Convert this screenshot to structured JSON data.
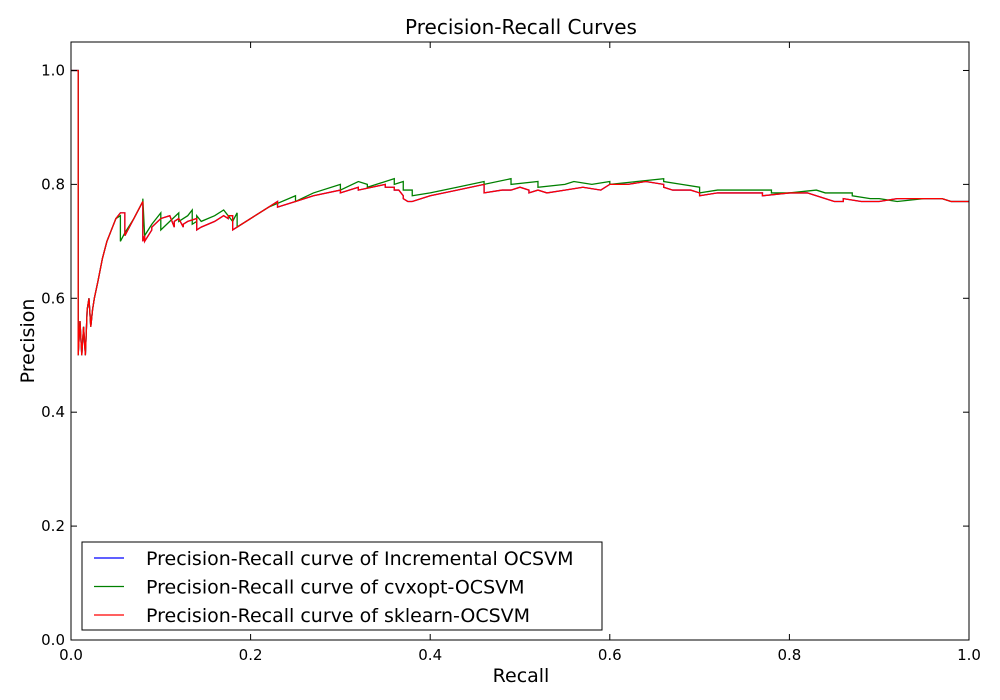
{
  "chart_data": {
    "type": "line",
    "title": "Precision-Recall Curves",
    "xlabel": "Recall",
    "ylabel": "Precision",
    "xlim": [
      0.0,
      1.0
    ],
    "ylim": [
      0.0,
      1.05
    ],
    "x_ticks": [
      "0.0",
      "0.2",
      "0.4",
      "0.6",
      "0.8",
      "1.0"
    ],
    "y_ticks": [
      "0.0",
      "0.2",
      "0.4",
      "0.6",
      "0.8",
      "1.0"
    ],
    "grid": false,
    "legend_position": "lower-left",
    "series": [
      {
        "name": "Precision-Recall curve of Incremental OCSVM",
        "color": "#0000ff",
        "x": [
          0.0,
          0.008,
          0.008,
          0.01,
          0.012,
          0.014,
          0.016,
          0.018,
          0.02,
          0.022,
          0.024,
          0.026,
          0.03,
          0.035,
          0.04,
          0.045,
          0.05,
          0.055,
          0.06,
          0.06,
          0.07,
          0.08,
          0.08,
          0.082,
          0.082,
          0.09,
          0.09,
          0.1,
          0.11,
          0.115,
          0.115,
          0.12,
          0.125,
          0.125,
          0.13,
          0.14,
          0.14,
          0.145,
          0.16,
          0.17,
          0.175,
          0.175,
          0.18,
          0.18,
          0.2,
          0.22,
          0.23,
          0.23,
          0.25,
          0.27,
          0.27,
          0.3,
          0.3,
          0.32,
          0.32,
          0.35,
          0.35,
          0.36,
          0.36,
          0.365,
          0.37,
          0.37,
          0.375,
          0.38,
          0.4,
          0.43,
          0.46,
          0.46,
          0.48,
          0.49,
          0.5,
          0.51,
          0.51,
          0.52,
          0.53,
          0.55,
          0.57,
          0.59,
          0.6,
          0.62,
          0.64,
          0.66,
          0.66,
          0.67,
          0.69,
          0.7,
          0.7,
          0.72,
          0.75,
          0.77,
          0.77,
          0.8,
          0.82,
          0.83,
          0.84,
          0.85,
          0.86,
          0.86,
          0.88,
          0.9,
          0.92,
          0.95,
          0.97,
          0.98,
          1.0
        ],
        "y": [
          1.0,
          1.0,
          0.5,
          0.56,
          0.5,
          0.55,
          0.5,
          0.58,
          0.6,
          0.55,
          0.58,
          0.6,
          0.63,
          0.67,
          0.7,
          0.72,
          0.74,
          0.75,
          0.75,
          0.71,
          0.74,
          0.77,
          0.7,
          0.71,
          0.7,
          0.72,
          0.725,
          0.74,
          0.745,
          0.725,
          0.735,
          0.74,
          0.725,
          0.73,
          0.735,
          0.74,
          0.72,
          0.725,
          0.735,
          0.745,
          0.74,
          0.745,
          0.745,
          0.72,
          0.74,
          0.76,
          0.77,
          0.76,
          0.77,
          0.78,
          0.78,
          0.79,
          0.785,
          0.795,
          0.79,
          0.8,
          0.795,
          0.795,
          0.79,
          0.79,
          0.78,
          0.775,
          0.77,
          0.77,
          0.78,
          0.79,
          0.8,
          0.785,
          0.79,
          0.79,
          0.795,
          0.79,
          0.785,
          0.79,
          0.785,
          0.79,
          0.795,
          0.79,
          0.8,
          0.8,
          0.805,
          0.8,
          0.795,
          0.79,
          0.79,
          0.785,
          0.78,
          0.785,
          0.785,
          0.785,
          0.78,
          0.785,
          0.785,
          0.78,
          0.775,
          0.77,
          0.77,
          0.775,
          0.77,
          0.77,
          0.775,
          0.775,
          0.775,
          0.77,
          0.77
        ]
      },
      {
        "name": "Precision-Recall curve of cvxopt-OCSVM",
        "color": "#008000",
        "x": [
          0.0,
          0.008,
          0.008,
          0.01,
          0.012,
          0.014,
          0.016,
          0.018,
          0.02,
          0.022,
          0.024,
          0.026,
          0.03,
          0.035,
          0.04,
          0.045,
          0.05,
          0.055,
          0.055,
          0.06,
          0.07,
          0.08,
          0.08,
          0.082,
          0.09,
          0.1,
          0.1,
          0.11,
          0.12,
          0.12,
          0.13,
          0.135,
          0.135,
          0.14,
          0.14,
          0.145,
          0.16,
          0.17,
          0.175,
          0.18,
          0.185,
          0.185,
          0.2,
          0.22,
          0.25,
          0.25,
          0.27,
          0.3,
          0.3,
          0.32,
          0.33,
          0.33,
          0.34,
          0.36,
          0.36,
          0.37,
          0.37,
          0.38,
          0.38,
          0.4,
          0.43,
          0.46,
          0.46,
          0.49,
          0.49,
          0.52,
          0.52,
          0.55,
          0.56,
          0.58,
          0.6,
          0.6,
          0.63,
          0.66,
          0.66,
          0.68,
          0.7,
          0.7,
          0.72,
          0.75,
          0.78,
          0.78,
          0.8,
          0.83,
          0.84,
          0.85,
          0.87,
          0.87,
          0.89,
          0.9,
          0.92,
          0.95,
          0.97,
          0.98,
          1.0
        ],
        "y": [
          1.0,
          1.0,
          0.5,
          0.56,
          0.5,
          0.55,
          0.5,
          0.58,
          0.6,
          0.55,
          0.58,
          0.6,
          0.63,
          0.67,
          0.7,
          0.72,
          0.74,
          0.745,
          0.7,
          0.715,
          0.74,
          0.77,
          0.775,
          0.71,
          0.73,
          0.75,
          0.72,
          0.735,
          0.75,
          0.735,
          0.745,
          0.755,
          0.73,
          0.735,
          0.745,
          0.735,
          0.745,
          0.755,
          0.745,
          0.735,
          0.75,
          0.725,
          0.74,
          0.76,
          0.78,
          0.77,
          0.785,
          0.8,
          0.79,
          0.805,
          0.8,
          0.795,
          0.8,
          0.81,
          0.8,
          0.805,
          0.79,
          0.79,
          0.78,
          0.785,
          0.795,
          0.805,
          0.8,
          0.81,
          0.8,
          0.805,
          0.795,
          0.8,
          0.805,
          0.8,
          0.805,
          0.8,
          0.805,
          0.81,
          0.805,
          0.8,
          0.795,
          0.785,
          0.79,
          0.79,
          0.79,
          0.785,
          0.785,
          0.79,
          0.785,
          0.785,
          0.785,
          0.78,
          0.775,
          0.775,
          0.77,
          0.775,
          0.775,
          0.77,
          0.77
        ]
      },
      {
        "name": "Precision-Recall curve of sklearn-OCSVM",
        "color": "#ff0000",
        "x": [
          0.0,
          0.008,
          0.008,
          0.01,
          0.012,
          0.014,
          0.016,
          0.018,
          0.02,
          0.022,
          0.024,
          0.026,
          0.03,
          0.035,
          0.04,
          0.045,
          0.05,
          0.055,
          0.06,
          0.06,
          0.07,
          0.08,
          0.08,
          0.082,
          0.082,
          0.09,
          0.09,
          0.1,
          0.11,
          0.115,
          0.115,
          0.12,
          0.125,
          0.125,
          0.13,
          0.14,
          0.14,
          0.145,
          0.16,
          0.17,
          0.175,
          0.175,
          0.18,
          0.18,
          0.2,
          0.22,
          0.23,
          0.23,
          0.25,
          0.27,
          0.27,
          0.3,
          0.3,
          0.32,
          0.32,
          0.35,
          0.35,
          0.36,
          0.36,
          0.365,
          0.37,
          0.37,
          0.375,
          0.38,
          0.4,
          0.43,
          0.46,
          0.46,
          0.48,
          0.49,
          0.5,
          0.51,
          0.51,
          0.52,
          0.53,
          0.55,
          0.57,
          0.59,
          0.6,
          0.62,
          0.64,
          0.66,
          0.66,
          0.67,
          0.69,
          0.7,
          0.7,
          0.72,
          0.75,
          0.77,
          0.77,
          0.8,
          0.82,
          0.83,
          0.84,
          0.85,
          0.86,
          0.86,
          0.88,
          0.9,
          0.92,
          0.95,
          0.97,
          0.98,
          1.0
        ],
        "y": [
          1.0,
          1.0,
          0.5,
          0.56,
          0.5,
          0.55,
          0.5,
          0.58,
          0.6,
          0.55,
          0.58,
          0.6,
          0.63,
          0.67,
          0.7,
          0.72,
          0.74,
          0.75,
          0.75,
          0.71,
          0.74,
          0.77,
          0.7,
          0.71,
          0.7,
          0.72,
          0.725,
          0.74,
          0.745,
          0.725,
          0.735,
          0.74,
          0.725,
          0.73,
          0.735,
          0.74,
          0.72,
          0.725,
          0.735,
          0.745,
          0.74,
          0.745,
          0.745,
          0.72,
          0.74,
          0.76,
          0.77,
          0.76,
          0.77,
          0.78,
          0.78,
          0.79,
          0.785,
          0.795,
          0.79,
          0.8,
          0.795,
          0.795,
          0.79,
          0.79,
          0.78,
          0.775,
          0.77,
          0.77,
          0.78,
          0.79,
          0.8,
          0.785,
          0.79,
          0.79,
          0.795,
          0.79,
          0.785,
          0.79,
          0.785,
          0.79,
          0.795,
          0.79,
          0.8,
          0.8,
          0.805,
          0.8,
          0.795,
          0.79,
          0.79,
          0.785,
          0.78,
          0.785,
          0.785,
          0.785,
          0.78,
          0.785,
          0.785,
          0.78,
          0.775,
          0.77,
          0.77,
          0.775,
          0.77,
          0.77,
          0.775,
          0.775,
          0.775,
          0.77,
          0.77
        ]
      }
    ]
  }
}
